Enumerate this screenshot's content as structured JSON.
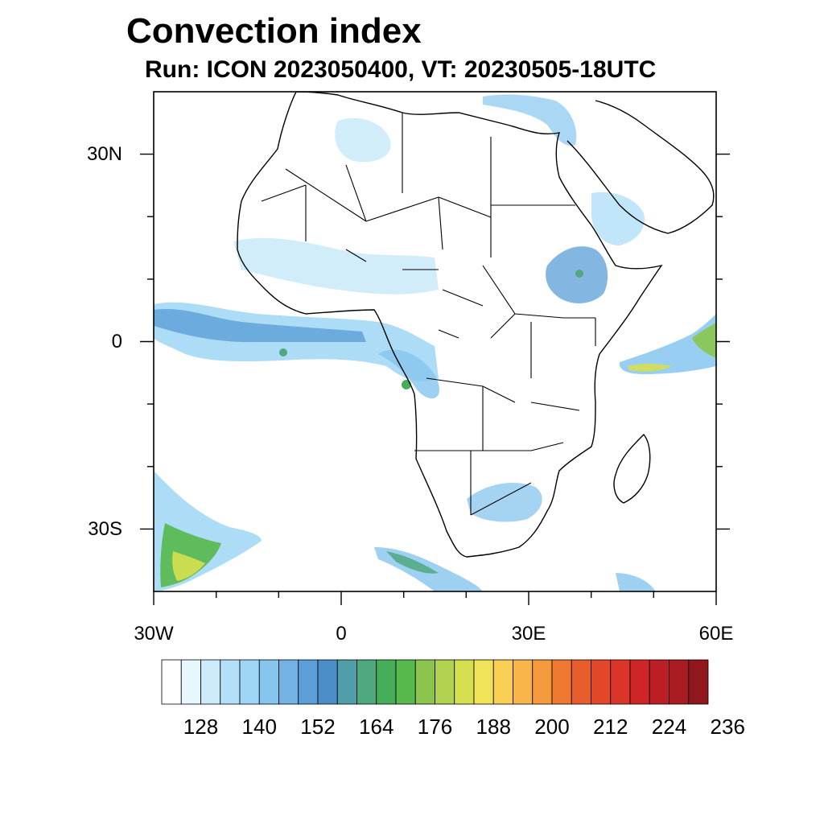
{
  "title": "Convection index",
  "subtitle": "Run: ICON 2023050400,  VT: 20230505-18UTC",
  "map": {
    "lon_range": [
      -30,
      60
    ],
    "lat_range": [
      -40,
      40
    ],
    "lat_ticks": [
      {
        "value": 30,
        "label": "30N"
      },
      {
        "value": 0,
        "label": "0"
      },
      {
        "value": -30,
        "label": "30S"
      }
    ],
    "lon_ticks": [
      {
        "value": -30,
        "label": "30W"
      },
      {
        "value": 0,
        "label": "0"
      },
      {
        "value": 30,
        "label": "30E"
      },
      {
        "value": 60,
        "label": "60E"
      }
    ]
  },
  "colorbar": {
    "colors": [
      "#ffffff",
      "#e8f6fd",
      "#cdebfa",
      "#b3e0f8",
      "#9fd6f5",
      "#86c6ee",
      "#72b2e4",
      "#5a9fd8",
      "#4c8ec8",
      "#4f9eaa",
      "#4fa87f",
      "#46ad5a",
      "#57b84c",
      "#8bc54e",
      "#b2d14f",
      "#d6df4f",
      "#f0e357",
      "#f9cf56",
      "#f8b549",
      "#f59a3c",
      "#ef7931",
      "#e85d2c",
      "#e2472a",
      "#da3528",
      "#cf2527",
      "#bd1e25",
      "#a91a22",
      "#8f171d"
    ],
    "labels": [
      "128",
      "140",
      "152",
      "164",
      "176",
      "188",
      "200",
      "212",
      "224",
      "236"
    ]
  }
}
